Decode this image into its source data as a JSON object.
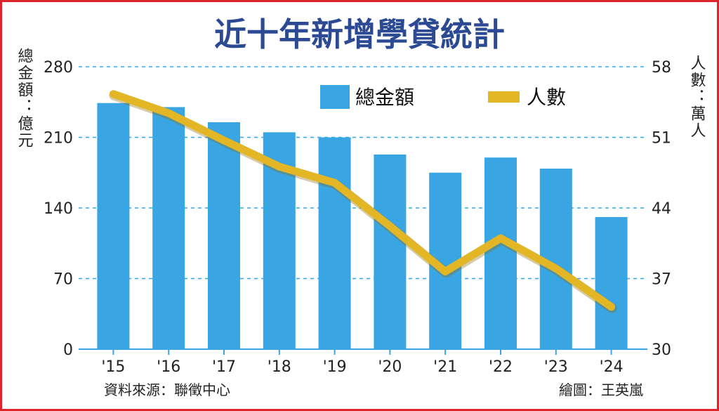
{
  "chart_data": {
    "type": "bar",
    "title": "近十年新增學貸統計",
    "categories": [
      "'15",
      "'16",
      "'17",
      "'18",
      "'19",
      "'20",
      "'21",
      "'22",
      "'23",
      "'24"
    ],
    "series": [
      {
        "name": "總金額",
        "type": "bar",
        "axis": "left",
        "color": "#3aa5e3",
        "values": [
          244,
          240,
          225,
          215,
          210,
          193,
          175,
          190,
          179,
          131
        ]
      },
      {
        "name": "人數",
        "type": "line",
        "axis": "right",
        "color": "#e2b625",
        "values": [
          55.3,
          53.4,
          50.7,
          48.1,
          46.5,
          42.2,
          37.7,
          41.0,
          38.0,
          34.2
        ]
      }
    ],
    "ylabel_left": "總金額：億元",
    "ylabel_right": "人數：萬人",
    "ylim_left": [
      0,
      280
    ],
    "yticks_left": [
      "0",
      "70",
      "140",
      "210",
      "280"
    ],
    "ylim_right": [
      30,
      58
    ],
    "yticks_right": [
      "30",
      "37",
      "44",
      "51",
      "58"
    ],
    "grid": "dashed horizontal",
    "legend_placement": "top-center"
  },
  "footer": {
    "source": "資料來源：聯徵中心",
    "credit": "繪圖：王英嵐"
  },
  "colors": {
    "frame": "#e0242b",
    "title": "#2c4a93",
    "grid": "#3aa5e3"
  }
}
